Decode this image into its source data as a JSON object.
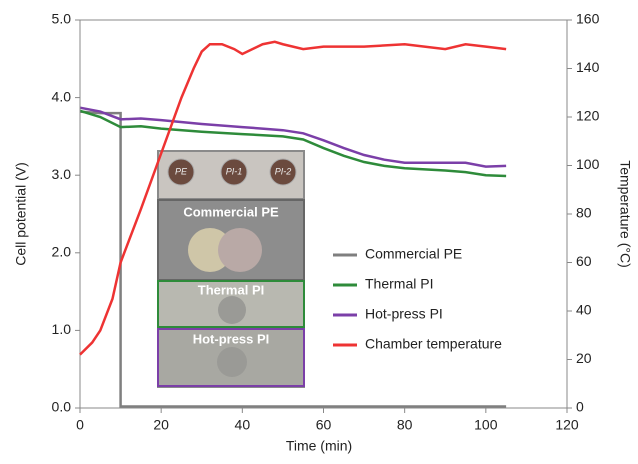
{
  "chart_data": {
    "type": "line",
    "xlabel": "Time (min)",
    "ylabel": "Cell potential (V)",
    "y2label": "Temperature (°C)",
    "xlim": [
      0,
      120
    ],
    "xticks": [
      0,
      20,
      40,
      60,
      80,
      100,
      120
    ],
    "ylim": [
      0,
      5
    ],
    "yticks": [
      {
        "value": 0,
        "label": "0.0"
      },
      {
        "value": 1,
        "label": "1.0"
      },
      {
        "value": 2,
        "label": "2.0"
      },
      {
        "value": 3,
        "label": "3.0"
      },
      {
        "value": 4,
        "label": "4.0"
      },
      {
        "value": 5,
        "label": "5.0"
      }
    ],
    "y2lim": [
      0,
      160
    ],
    "y2ticks": [
      0,
      20,
      40,
      60,
      80,
      100,
      120,
      140,
      160
    ],
    "legend": "right",
    "series": [
      {
        "name": "Commercial PE",
        "color": "#7f7f7f",
        "x": [
          0,
          5,
          10,
          10,
          105
        ],
        "values": [
          3.82,
          3.8,
          3.8,
          0.02,
          0.02
        ]
      },
      {
        "name": "Thermal PI",
        "color": "#2e8b3a",
        "x": [
          0,
          5,
          10,
          15,
          20,
          30,
          40,
          50,
          55,
          60,
          65,
          70,
          75,
          80,
          90,
          95,
          100,
          105
        ],
        "values": [
          3.83,
          3.75,
          3.62,
          3.63,
          3.6,
          3.56,
          3.53,
          3.5,
          3.46,
          3.35,
          3.25,
          3.17,
          3.12,
          3.09,
          3.06,
          3.04,
          3.0,
          2.99
        ]
      },
      {
        "name": "Hot-press PI",
        "color": "#7b3fa8",
        "x": [
          0,
          5,
          10,
          15,
          20,
          30,
          40,
          50,
          55,
          60,
          65,
          70,
          75,
          80,
          90,
          95,
          100,
          105
        ],
        "values": [
          3.87,
          3.82,
          3.72,
          3.73,
          3.71,
          3.66,
          3.62,
          3.58,
          3.54,
          3.45,
          3.35,
          3.26,
          3.2,
          3.16,
          3.16,
          3.16,
          3.11,
          3.12
        ]
      },
      {
        "name": "Chamber temperature",
        "color": "#ee3333",
        "axis": "y2",
        "x": [
          0,
          3,
          5,
          8,
          10,
          15,
          20,
          25,
          28,
          30,
          32,
          35,
          38,
          40,
          45,
          48,
          50,
          55,
          60,
          70,
          80,
          90,
          95,
          100,
          105
        ],
        "values": [
          22,
          27,
          32,
          45,
          60,
          82,
          105,
          128,
          140,
          147,
          150,
          150,
          148,
          146,
          150,
          151,
          150,
          148,
          149,
          149,
          150,
          148,
          150,
          149,
          148
        ]
      }
    ],
    "annotations": [
      "Commercial PE",
      "Thermal PI",
      "Hot-press PI",
      "PE",
      "PI-1",
      "PI-2"
    ]
  }
}
